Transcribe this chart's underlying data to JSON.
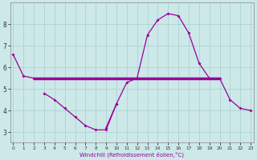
{
  "xlabel": "Windchill (Refroidissement éolien,°C)",
  "bg_color": "#cce8e8",
  "grid_color": "#aacece",
  "line_color": "#990099",
  "x_hours": [
    0,
    1,
    2,
    3,
    4,
    5,
    6,
    7,
    8,
    9,
    10,
    11,
    12,
    13,
    14,
    15,
    16,
    17,
    18,
    19,
    20,
    21,
    22,
    23
  ],
  "curve_main_y": [
    6.6,
    5.6,
    5.5,
    null,
    null,
    null,
    null,
    null,
    null,
    null,
    null,
    null,
    null,
    null,
    null,
    null,
    null,
    null,
    null,
    null,
    null,
    null,
    null,
    null
  ],
  "curve_big_y": [
    null,
    null,
    null,
    null,
    null,
    null,
    null,
    null,
    null,
    3.2,
    4.3,
    5.3,
    5.5,
    7.5,
    8.2,
    8.5,
    8.4,
    7.6,
    6.2,
    5.5,
    5.5,
    4.5,
    4.1,
    4.0
  ],
  "curve_low_y": [
    null,
    null,
    null,
    4.8,
    4.5,
    4.1,
    3.7,
    3.3,
    3.1,
    3.1,
    4.3,
    null,
    null,
    null,
    null,
    null,
    null,
    null,
    null,
    null,
    null,
    null,
    null,
    null
  ],
  "curve_flat_y": [
    null,
    null,
    5.5,
    5.5,
    5.5,
    5.5,
    5.5,
    5.5,
    5.5,
    5.5,
    5.5,
    5.5,
    5.5,
    5.5,
    5.5,
    5.5,
    5.5,
    5.5,
    5.5,
    5.5,
    5.5,
    null,
    null,
    null
  ],
  "flat_line_x": [
    2,
    20
  ],
  "flat_line_y": [
    5.5,
    5.5
  ],
  "ylim": [
    2.5,
    9.0
  ],
  "xlim": [
    -0.3,
    23.3
  ],
  "yticks": [
    3,
    4,
    5,
    6,
    7,
    8
  ],
  "xticks": [
    0,
    1,
    2,
    3,
    4,
    5,
    6,
    7,
    8,
    9,
    10,
    11,
    12,
    13,
    14,
    15,
    16,
    17,
    18,
    19,
    20,
    21,
    22,
    23
  ]
}
